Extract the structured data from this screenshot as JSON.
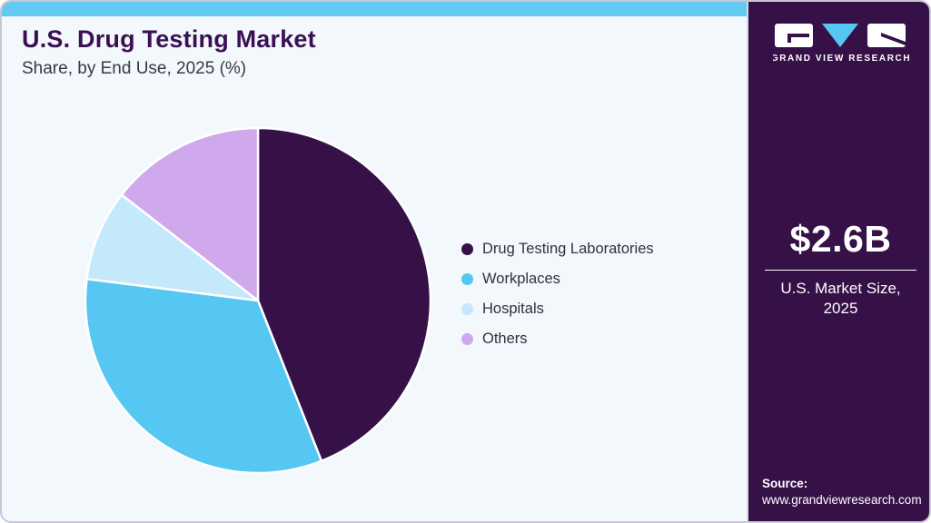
{
  "header": {
    "title": "U.S. Drug Testing Market",
    "subtitle": "Share, by End Use, 2025 (%)"
  },
  "chart_data": {
    "type": "pie",
    "title": "U.S. Drug Testing Market Share, by End Use, 2025 (%)",
    "labels": [
      "Drug Testing Laboratories",
      "Workplaces",
      "Hospitals",
      "Others"
    ],
    "values": [
      44,
      33,
      8.5,
      14.5
    ],
    "unit": "%",
    "colors": [
      "#361148",
      "#56c7f2",
      "#c3e9fa",
      "#d0a9ec"
    ],
    "start_angle_deg": 0,
    "direction": "clockwise",
    "legend_position": "right",
    "slice_border_color": "#ffffff"
  },
  "sidebar": {
    "logo": {
      "brand": "GRAND VIEW RESEARCH"
    },
    "market_size": {
      "value": "$2.6B",
      "label_line1": "U.S. Market Size,",
      "label_line2": "2025"
    },
    "source": {
      "label": "Source:",
      "url": "www.grandviewresearch.com"
    }
  },
  "colors": {
    "accent_bar": "#63caf2",
    "sidebar_bg": "#361148",
    "card_bg": "#f2f8fb",
    "title_color": "#3b1053",
    "logo_triangle": "#56c7f2"
  }
}
